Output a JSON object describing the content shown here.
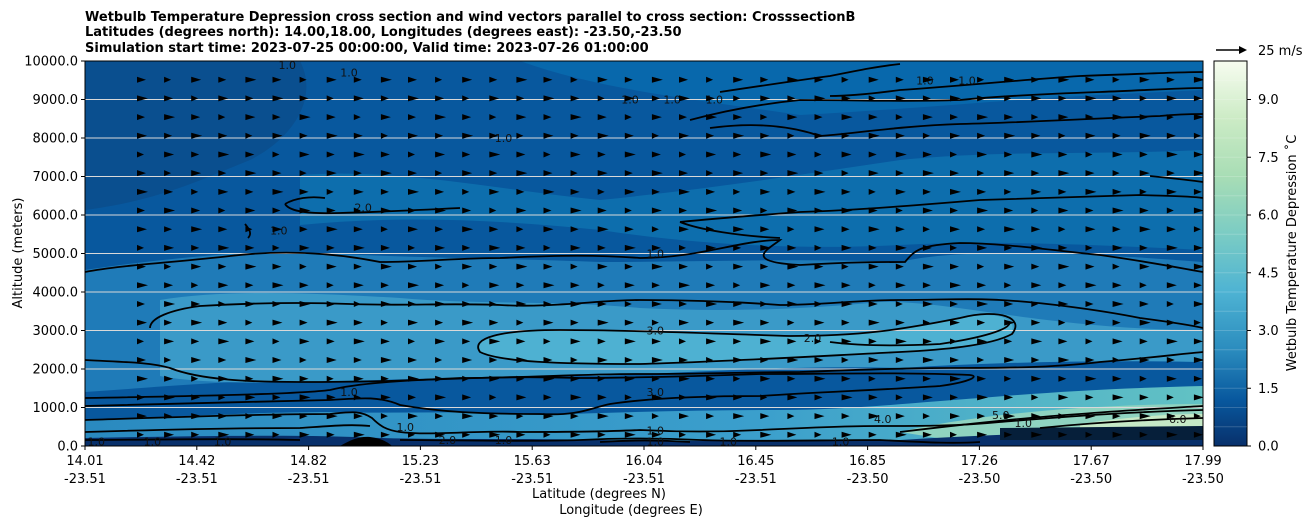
{
  "chart_data": {
    "type": "heatmap",
    "title_lines": [
      "Wetbulb Temperature Depression cross section and wind vectors parallel to cross section: CrosssectionB",
      "Latitudes (degrees north): 14.00,18.00, Longitudes (degrees east): -23.50,-23.50",
      "Simulation start time: 2023-07-25 00:00:00, Valid time: 2023-07-26 01:00:00"
    ],
    "ylabel": "Altitude (meters)",
    "xlabel_lines": [
      "Latitude (degrees N)",
      "Longitude (degrees E)"
    ],
    "ylim": [
      0,
      10000
    ],
    "yticks": [
      "0.0",
      "1000.0",
      "2000.0",
      "3000.0",
      "4000.0",
      "5000.0",
      "6000.0",
      "7000.0",
      "8000.0",
      "9000.0",
      "10000.0"
    ],
    "xticks": [
      {
        "lat": "14.01",
        "lon": "-23.51"
      },
      {
        "lat": "14.42",
        "lon": "-23.51"
      },
      {
        "lat": "14.82",
        "lon": "-23.51"
      },
      {
        "lat": "15.23",
        "lon": "-23.51"
      },
      {
        "lat": "15.63",
        "lon": "-23.51"
      },
      {
        "lat": "16.04",
        "lon": "-23.51"
      },
      {
        "lat": "16.45",
        "lon": "-23.51"
      },
      {
        "lat": "16.85",
        "lon": "-23.50"
      },
      {
        "lat": "17.26",
        "lon": "-23.50"
      },
      {
        "lat": "17.67",
        "lon": "-23.50"
      },
      {
        "lat": "17.99",
        "lon": "-23.50"
      }
    ],
    "xlim": [
      14.01,
      17.99
    ],
    "colorbar": {
      "label": "Wetbulb Temperature Depression ˚C",
      "range": [
        0,
        10
      ],
      "ticks": [
        "0.0",
        "1.5",
        "3.0",
        "4.5",
        "6.0",
        "7.5",
        "9.0"
      ],
      "colormap": "GnBu_r"
    },
    "quiver_key": "25 m/s",
    "contour_labels": [
      {
        "text": "1.0",
        "lat": 16.1,
        "alt": 9000
      },
      {
        "text": "1.0",
        "lat": 16.04,
        "alt": 5000
      },
      {
        "text": "3.0",
        "lat": 16.04,
        "alt": 3000
      },
      {
        "text": "3.0",
        "lat": 16.04,
        "alt": 1400
      },
      {
        "text": "1.0",
        "lat": 16.04,
        "alt": 400
      },
      {
        "text": "1.0",
        "lat": 16.04,
        "alt": 120
      },
      {
        "text": "1.0",
        "lat": 14.05,
        "alt": 120
      },
      {
        "text": "1.0",
        "lat": 14.25,
        "alt": 120
      },
      {
        "text": "1.0",
        "lat": 14.5,
        "alt": 120
      },
      {
        "text": "1.0",
        "lat": 15.15,
        "alt": 500
      },
      {
        "text": "1.0",
        "lat": 14.95,
        "alt": 1400
      },
      {
        "text": "1.0",
        "lat": 14.7,
        "alt": 5600
      },
      {
        "text": "2.0",
        "lat": 15.3,
        "alt": 150
      },
      {
        "text": "1.0",
        "lat": 15.5,
        "alt": 150
      },
      {
        "text": "1.0",
        "lat": 16.3,
        "alt": 120
      },
      {
        "text": "1.0",
        "lat": 16.7,
        "alt": 120
      },
      {
        "text": "2.0",
        "lat": 16.6,
        "alt": 2800
      },
      {
        "text": "4.0",
        "lat": 16.85,
        "alt": 700
      },
      {
        "text": "2.0",
        "lat": 15.0,
        "alt": 6200
      },
      {
        "text": "1.0",
        "lat": 15.5,
        "alt": 8000
      },
      {
        "text": "1.0",
        "lat": 15.95,
        "alt": 9000
      },
      {
        "text": "1.0",
        "lat": 16.25,
        "alt": 9000
      },
      {
        "text": "1.0",
        "lat": 17.0,
        "alt": 9500
      },
      {
        "text": "1.0",
        "lat": 17.15,
        "alt": 9500
      },
      {
        "text": "1.0",
        "lat": 14.73,
        "alt": 9900
      },
      {
        "text": "1.0",
        "lat": 14.95,
        "alt": 9700
      },
      {
        "text": "5.0",
        "lat": 17.27,
        "alt": 800
      },
      {
        "text": "1.0",
        "lat": 17.35,
        "alt": 600
      },
      {
        "text": "6.0",
        "lat": 17.9,
        "alt": 700
      }
    ]
  }
}
